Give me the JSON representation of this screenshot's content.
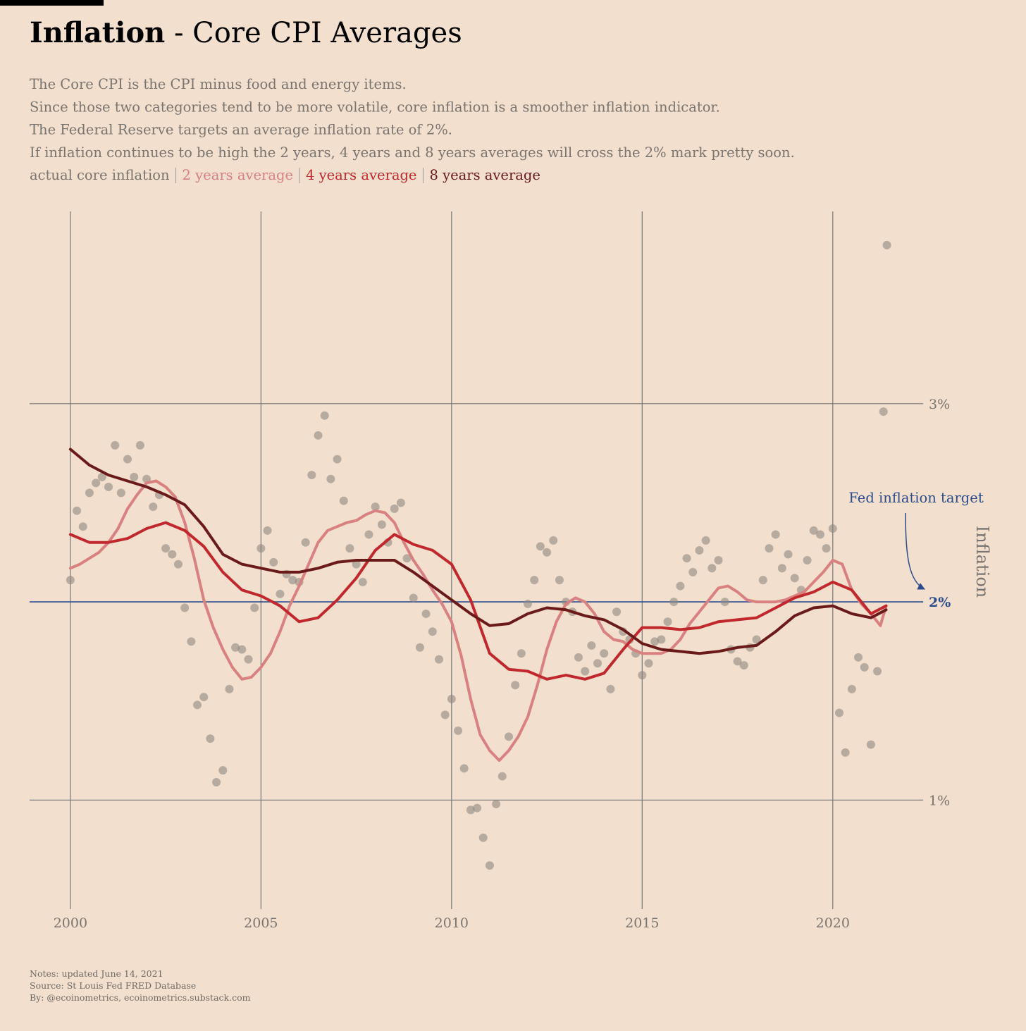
{
  "chart_data": {
    "type": "line",
    "title_bold": "Inflation",
    "title_rest": " - Core CPI Averages",
    "subtitle": [
      "The Core CPI is the CPI minus food and energy items.",
      "Since those two categories tend to be more volatile, core inflation is a smoother inflation indicator.",
      "The Federal Reserve targets an average inflation rate of 2%.",
      "If inflation continues to be high the 2 years, 4 years and 8 years averages will cross the 2% mark pretty soon."
    ],
    "y_label": "Inflation",
    "annotation": "Fed inflation target",
    "target_line": {
      "value": 2,
      "color": "#2b4c8c"
    },
    "notes": [
      "Notes: updated June 14, 2021",
      "Source: St Louis Fed FRED Database",
      "By: @ecoinometrics, ecoinometrics.substack.com"
    ],
    "xlim": [
      1998.93,
      2022.37
    ],
    "xticks": [
      2000,
      2005,
      2010,
      2015,
      2020
    ],
    "ylim": [
      0.45,
      3.97
    ],
    "yticks": [
      {
        "value": 1,
        "label": "1%"
      },
      {
        "value": 2,
        "label": "2%"
      },
      {
        "value": 3,
        "label": "3%"
      }
    ],
    "grid": true,
    "series": [
      {
        "name": "actual core inflation",
        "color": "#8f8781",
        "mode": "markers",
        "x": [
          2000,
          2000.17,
          2000.33,
          2000.5,
          2000.67,
          2000.83,
          2001,
          2001.17,
          2001.33,
          2001.5,
          2001.67,
          2001.83,
          2002,
          2002.17,
          2002.33,
          2002.5,
          2002.67,
          2002.83,
          2003,
          2003.17,
          2003.33,
          2003.5,
          2003.67,
          2003.83,
          2004,
          2004.17,
          2004.33,
          2004.5,
          2004.67,
          2004.83,
          2005,
          2005.17,
          2005.33,
          2005.5,
          2005.67,
          2005.83,
          2006,
          2006.17,
          2006.33,
          2006.5,
          2006.67,
          2006.83,
          2007,
          2007.17,
          2007.33,
          2007.5,
          2007.67,
          2007.83,
          2008,
          2008.17,
          2008.33,
          2008.5,
          2008.67,
          2008.83,
          2009,
          2009.17,
          2009.33,
          2009.5,
          2009.67,
          2009.83,
          2010,
          2010.17,
          2010.33,
          2010.5,
          2010.67,
          2010.83,
          2011,
          2011.17,
          2011.33,
          2011.5,
          2011.67,
          2011.83,
          2012,
          2012.17,
          2012.33,
          2012.5,
          2012.67,
          2012.83,
          2013,
          2013.17,
          2013.33,
          2013.5,
          2013.67,
          2013.83,
          2014,
          2014.17,
          2014.33,
          2014.5,
          2014.67,
          2014.83,
          2015,
          2015.17,
          2015.33,
          2015.5,
          2015.67,
          2015.83,
          2016,
          2016.17,
          2016.33,
          2016.5,
          2016.67,
          2016.83,
          2017,
          2017.17,
          2017.33,
          2017.5,
          2017.67,
          2017.83,
          2018,
          2018.17,
          2018.33,
          2018.5,
          2018.67,
          2018.83,
          2019,
          2019.17,
          2019.33,
          2019.5,
          2019.67,
          2019.83,
          2020,
          2020.17,
          2020.33,
          2020.5,
          2020.67,
          2020.83,
          2021,
          2021.17,
          2021.33,
          2021.42
        ],
        "values": [
          2.11,
          2.46,
          2.38,
          2.55,
          2.6,
          2.63,
          2.58,
          2.79,
          2.55,
          2.72,
          2.63,
          2.79,
          2.62,
          2.48,
          2.54,
          2.27,
          2.24,
          2.19,
          1.97,
          1.8,
          1.48,
          1.52,
          1.31,
          1.09,
          1.15,
          1.56,
          1.77,
          1.76,
          1.71,
          1.97,
          2.27,
          2.36,
          2.2,
          2.04,
          2.14,
          2.11,
          2.1,
          2.3,
          2.64,
          2.84,
          2.94,
          2.62,
          2.72,
          2.51,
          2.27,
          2.19,
          2.1,
          2.34,
          2.48,
          2.39,
          2.3,
          2.47,
          2.5,
          2.22,
          2.02,
          1.77,
          1.94,
          1.85,
          1.71,
          1.43,
          1.51,
          1.35,
          1.16,
          0.95,
          0.96,
          0.81,
          0.67,
          0.98,
          1.12,
          1.32,
          1.58,
          1.74,
          1.99,
          2.11,
          2.28,
          2.25,
          2.31,
          2.11,
          2,
          1.95,
          1.72,
          1.65,
          1.78,
          1.69,
          1.74,
          1.56,
          1.95,
          1.85,
          1.81,
          1.74,
          1.63,
          1.69,
          1.8,
          1.81,
          1.9,
          2,
          2.08,
          2.22,
          2.15,
          2.26,
          2.31,
          2.17,
          2.21,
          2,
          1.76,
          1.7,
          1.68,
          1.77,
          1.81,
          2.11,
          2.27,
          2.34,
          2.17,
          2.24,
          2.12,
          2.06,
          2.21,
          2.36,
          2.34,
          2.27,
          2.37,
          1.44,
          1.24,
          1.56,
          1.72,
          1.67,
          1.28,
          1.65,
          2.96,
          3.8
        ]
      },
      {
        "name": "2 years average",
        "color": "#d98080",
        "mode": "line",
        "x": [
          2000,
          2000.25,
          2000.5,
          2000.75,
          2001,
          2001.25,
          2001.5,
          2001.75,
          2002,
          2002.25,
          2002.5,
          2002.75,
          2003,
          2003.25,
          2003.5,
          2003.75,
          2004,
          2004.25,
          2004.5,
          2004.75,
          2005,
          2005.25,
          2005.5,
          2005.75,
          2006,
          2006.25,
          2006.5,
          2006.75,
          2007,
          2007.25,
          2007.5,
          2007.75,
          2008,
          2008.25,
          2008.5,
          2008.75,
          2009,
          2009.25,
          2009.5,
          2009.75,
          2010,
          2010.25,
          2010.5,
          2010.75,
          2011,
          2011.25,
          2011.5,
          2011.75,
          2012,
          2012.25,
          2012.5,
          2012.75,
          2013,
          2013.25,
          2013.5,
          2013.75,
          2014,
          2014.25,
          2014.5,
          2014.75,
          2015,
          2015.25,
          2015.5,
          2015.75,
          2016,
          2016.25,
          2016.5,
          2016.75,
          2017,
          2017.25,
          2017.5,
          2017.75,
          2018,
          2018.25,
          2018.5,
          2018.75,
          2019,
          2019.25,
          2019.5,
          2019.75,
          2020,
          2020.25,
          2020.5,
          2020.75,
          2021,
          2021.25,
          2021.4
        ],
        "values": [
          2.17,
          2.19,
          2.22,
          2.25,
          2.3,
          2.37,
          2.47,
          2.54,
          2.6,
          2.61,
          2.58,
          2.53,
          2.4,
          2.22,
          2.01,
          1.87,
          1.76,
          1.67,
          1.61,
          1.62,
          1.67,
          1.74,
          1.85,
          1.98,
          2.08,
          2.19,
          2.3,
          2.36,
          2.38,
          2.4,
          2.41,
          2.44,
          2.46,
          2.45,
          2.4,
          2.3,
          2.21,
          2.14,
          2.06,
          1.99,
          1.9,
          1.73,
          1.51,
          1.33,
          1.25,
          1.2,
          1.25,
          1.32,
          1.42,
          1.58,
          1.76,
          1.9,
          1.99,
          2.02,
          2,
          1.94,
          1.85,
          1.81,
          1.8,
          1.76,
          1.74,
          1.74,
          1.74,
          1.76,
          1.81,
          1.89,
          1.95,
          2.01,
          2.07,
          2.08,
          2.05,
          2.01,
          2,
          2,
          2,
          2.01,
          2.03,
          2.05,
          2.1,
          2.15,
          2.21,
          2.19,
          2.06,
          1.99,
          1.94,
          1.88,
          1.98
        ]
      },
      {
        "name": "4 years average",
        "color": "#c0282d",
        "mode": "line",
        "x": [
          2000,
          2000.5,
          2001,
          2001.5,
          2002,
          2002.5,
          2003,
          2003.5,
          2004,
          2004.5,
          2005,
          2005.5,
          2006,
          2006.5,
          2007,
          2007.5,
          2008,
          2008.5,
          2009,
          2009.5,
          2010,
          2010.5,
          2011,
          2011.5,
          2012,
          2012.5,
          2013,
          2013.5,
          2014,
          2014.5,
          2015,
          2015.5,
          2016,
          2016.5,
          2017,
          2017.5,
          2018,
          2018.5,
          2019,
          2019.5,
          2020,
          2020.5,
          2021,
          2021.4
        ],
        "values": [
          2.34,
          2.3,
          2.3,
          2.32,
          2.37,
          2.4,
          2.36,
          2.28,
          2.15,
          2.06,
          2.03,
          1.98,
          1.9,
          1.92,
          2.01,
          2.12,
          2.26,
          2.34,
          2.29,
          2.26,
          2.19,
          2.01,
          1.74,
          1.66,
          1.65,
          1.61,
          1.63,
          1.61,
          1.64,
          1.76,
          1.87,
          1.87,
          1.86,
          1.87,
          1.9,
          1.91,
          1.92,
          1.97,
          2.02,
          2.05,
          2.1,
          2.06,
          1.94,
          1.98
        ]
      },
      {
        "name": "8 years average",
        "color": "#6b1a1a",
        "mode": "line",
        "x": [
          2000,
          2000.5,
          2001,
          2001.5,
          2002,
          2002.5,
          2003,
          2003.5,
          2004,
          2004.5,
          2005,
          2005.5,
          2006,
          2006.5,
          2007,
          2007.5,
          2008,
          2008.5,
          2009,
          2009.5,
          2010,
          2010.5,
          2011,
          2011.5,
          2012,
          2012.5,
          2013,
          2013.5,
          2014,
          2014.5,
          2015,
          2015.5,
          2016,
          2016.5,
          2017,
          2017.5,
          2018,
          2018.5,
          2019,
          2019.5,
          2020,
          2020.5,
          2021,
          2021.4
        ],
        "values": [
          2.77,
          2.69,
          2.64,
          2.61,
          2.58,
          2.54,
          2.49,
          2.38,
          2.24,
          2.19,
          2.17,
          2.15,
          2.15,
          2.17,
          2.2,
          2.21,
          2.21,
          2.21,
          2.15,
          2.08,
          2.01,
          1.94,
          1.88,
          1.89,
          1.94,
          1.97,
          1.96,
          1.93,
          1.91,
          1.86,
          1.79,
          1.76,
          1.75,
          1.74,
          1.75,
          1.77,
          1.78,
          1.85,
          1.93,
          1.97,
          1.98,
          1.94,
          1.92,
          1.96
        ]
      }
    ]
  }
}
